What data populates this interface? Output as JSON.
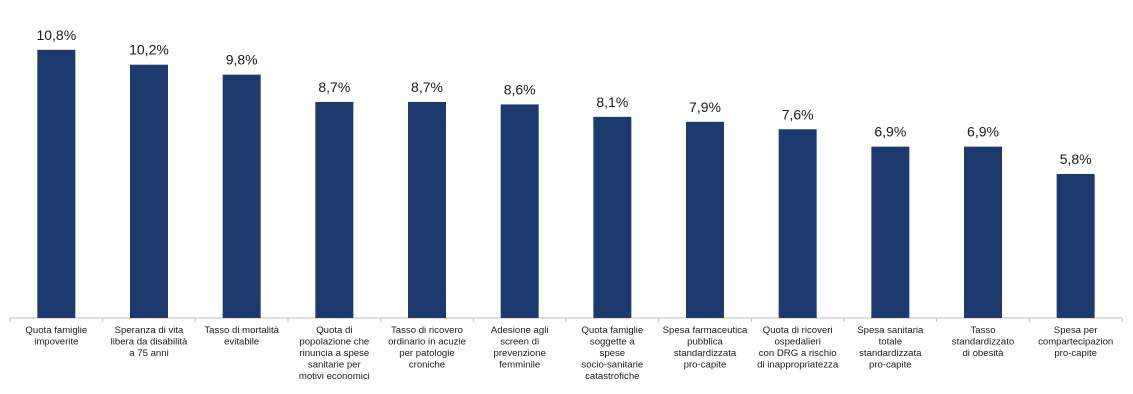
{
  "chart_data": {
    "type": "bar",
    "categories": [
      [
        "Quota famiglie",
        "impoverite"
      ],
      [
        "Speranza di vita",
        "libera da disabilità",
        "a 75 anni"
      ],
      [
        "Tasso di mortalità",
        "evitabile"
      ],
      [
        "Quota di",
        "popolazione che",
        "rinuncia a spese",
        "sanitarie per",
        "motivi economici"
      ],
      [
        "Tasso di ricovero",
        "ordinario in acuzie",
        "per patologie",
        "croniche"
      ],
      [
        "Adesione agli",
        "screen di",
        "prevenzione",
        "femminile"
      ],
      [
        "Quota famiglie",
        "soggette a",
        "spese",
        "socio-sanitarie",
        "catastrofiche"
      ],
      [
        "Spesa farmaceutica",
        "pubblica",
        "standardizzata",
        "pro-capite"
      ],
      [
        "Quota di ricoveri",
        "ospedalieri",
        "con DRG a rischio",
        "di inappropriatezza"
      ],
      [
        "Spesa sanitaria",
        "totale",
        "standardizzata",
        "pro-capite"
      ],
      [
        "Tasso",
        "standardizzato",
        "di obesità"
      ],
      [
        "Spesa per",
        "compartecipazion",
        "pro-capite"
      ]
    ],
    "values": [
      10.8,
      10.2,
      9.8,
      8.7,
      8.7,
      8.6,
      8.1,
      7.9,
      7.6,
      6.9,
      6.9,
      5.8
    ],
    "value_labels": [
      "10,8%",
      "10,2%",
      "9,8%",
      "8,7%",
      "8,7%",
      "8,6%",
      "8,1%",
      "7,9%",
      "7,6%",
      "6,9%",
      "6,9%",
      "5,8%"
    ],
    "ylim": [
      0,
      12
    ],
    "bar_color": "#1c3a6e",
    "axis_color": "#bfbfbf",
    "grid": false,
    "title": "",
    "xlabel": "",
    "ylabel": ""
  }
}
